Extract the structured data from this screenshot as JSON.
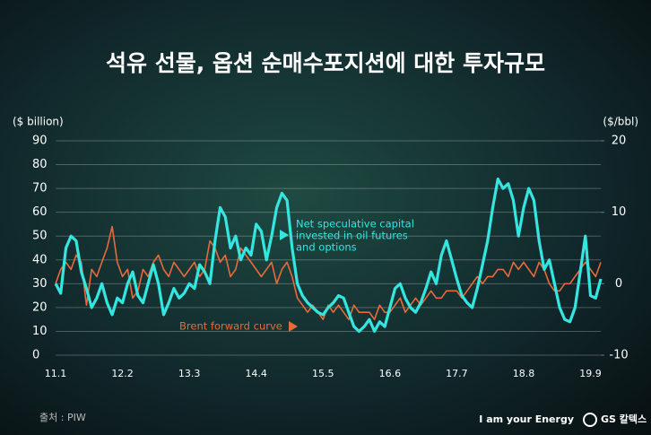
{
  "chart_data": {
    "type": "line",
    "title": "석유 선물, 옵션 순매수포지션에 대한 투자규모",
    "y_label": "($ billion)",
    "y2_label": "($/bbl)",
    "source": "출처 : PIW",
    "brand": "I am your Energy",
    "logo": "GS 칼텍스",
    "categories": [
      "11.1",
      null,
      null,
      null,
      null,
      null,
      null,
      null,
      null,
      null,
      null,
      null,
      null,
      "12.2",
      null,
      null,
      null,
      null,
      null,
      null,
      null,
      null,
      null,
      null,
      null,
      null,
      "13.3",
      null,
      null,
      null,
      null,
      null,
      null,
      null,
      null,
      null,
      null,
      null,
      null,
      "14.4",
      null,
      null,
      null,
      null,
      null,
      null,
      null,
      null,
      null,
      null,
      null,
      null,
      "15.5",
      null,
      null,
      null,
      null,
      null,
      null,
      null,
      null,
      null,
      null,
      null,
      null,
      "16.6",
      null,
      null,
      null,
      null,
      null,
      null,
      null,
      null,
      null,
      null,
      null,
      null,
      "17.7",
      null,
      null,
      null,
      null,
      null,
      null,
      null,
      null,
      null,
      null,
      null,
      null,
      "18.8",
      null,
      null,
      null,
      null,
      null,
      null,
      null,
      null,
      null,
      null,
      null,
      null,
      "19.9",
      null,
      null
    ],
    "ylim": [
      0,
      90
    ],
    "yticks": [
      0,
      10,
      20,
      30,
      40,
      50,
      60,
      70,
      80,
      90
    ],
    "y2lim": [
      -10,
      20
    ],
    "y2ticks": [
      -10,
      0,
      10,
      20
    ],
    "grid": true,
    "series": [
      {
        "name": "Net speculative capital invested in oil futures and options",
        "color": "#34e6e0",
        "axis": "y",
        "values": [
          30,
          26,
          45,
          50,
          48,
          35,
          28,
          20,
          24,
          30,
          22,
          17,
          24,
          22,
          30,
          35,
          25,
          22,
          30,
          38,
          30,
          17,
          22,
          28,
          24,
          26,
          30,
          28,
          38,
          35,
          30,
          48,
          62,
          58,
          45,
          50,
          40,
          45,
          42,
          55,
          52,
          40,
          50,
          62,
          68,
          65,
          45,
          30,
          25,
          22,
          20,
          18,
          17,
          20,
          22,
          25,
          24,
          18,
          12,
          10,
          12,
          15,
          10,
          14,
          12,
          20,
          28,
          30,
          24,
          20,
          18,
          22,
          28,
          35,
          30,
          42,
          48,
          40,
          32,
          25,
          22,
          20,
          28,
          38,
          48,
          62,
          74,
          70,
          72,
          65,
          50,
          62,
          70,
          65,
          48,
          36,
          40,
          30,
          20,
          15,
          14,
          20,
          35,
          50,
          25,
          24,
          32
        ]
      },
      {
        "name": "Brent forward curve",
        "color": "#e8693c",
        "axis": "y2",
        "values": [
          0,
          2,
          3,
          2,
          4,
          3,
          -3,
          2,
          1,
          3,
          5,
          8,
          3,
          1,
          2,
          -2,
          -1,
          2,
          1,
          3,
          4,
          2,
          1,
          3,
          2,
          1,
          2,
          3,
          1,
          2,
          6,
          5,
          3,
          4,
          1,
          2,
          5,
          4,
          3,
          2,
          1,
          2,
          3,
          0,
          2,
          3,
          1,
          -2,
          -3,
          -4,
          -3,
          -4,
          -5,
          -3,
          -4,
          -3,
          -4,
          -5,
          -3,
          -4,
          -4,
          -4,
          -5,
          -3,
          -4,
          -4,
          -3,
          -2,
          -4,
          -3,
          -2,
          -3,
          -2,
          -1,
          -2,
          -2,
          -1,
          -1,
          -1,
          -2,
          -1,
          0,
          1,
          0,
          1,
          1,
          2,
          2,
          1,
          3,
          2,
          3,
          2,
          1,
          3,
          2,
          0,
          -1,
          -1,
          0,
          0,
          1,
          2,
          3,
          2,
          1,
          3
        ]
      }
    ],
    "annotations": [
      {
        "lines": [
          "Net speculative capital",
          "invested in oil futures",
          "and options"
        ],
        "color": "#34e6e0"
      },
      {
        "lines": [
          "Brent forward curve"
        ],
        "color": "#e8693c"
      }
    ]
  }
}
